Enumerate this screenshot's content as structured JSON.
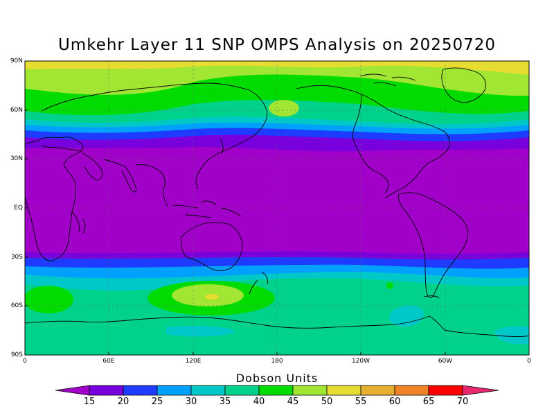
{
  "title": "Umkehr Layer 11 SNP OMPS Analysis on 20250720",
  "lat_labels": [
    "90N",
    "60N",
    "30N",
    "EQ",
    "30S",
    "60S",
    "90S"
  ],
  "lon_labels": [
    "0",
    "60E",
    "120E",
    "180",
    "120W",
    "60W",
    "0"
  ],
  "colorbar": {
    "title": "Dobson Units",
    "levels": [
      "15",
      "20",
      "25",
      "30",
      "35",
      "40",
      "45",
      "50",
      "55",
      "60",
      "65",
      "70"
    ],
    "colors": [
      "#a000c8",
      "#7800dc",
      "#1e3cff",
      "#00a0ff",
      "#00c8c8",
      "#00d28c",
      "#00dc00",
      "#a0e632",
      "#e6dc32",
      "#e6af2d",
      "#f08228",
      "#fa0000",
      "#e6286e"
    ]
  },
  "field_bands": {
    "value_bands_north": [
      "50",
      "45",
      "40",
      "35",
      "30",
      "25",
      "20",
      "15"
    ],
    "value_bands_south": [
      "15",
      "20",
      "25",
      "30",
      "35",
      "40"
    ]
  }
}
